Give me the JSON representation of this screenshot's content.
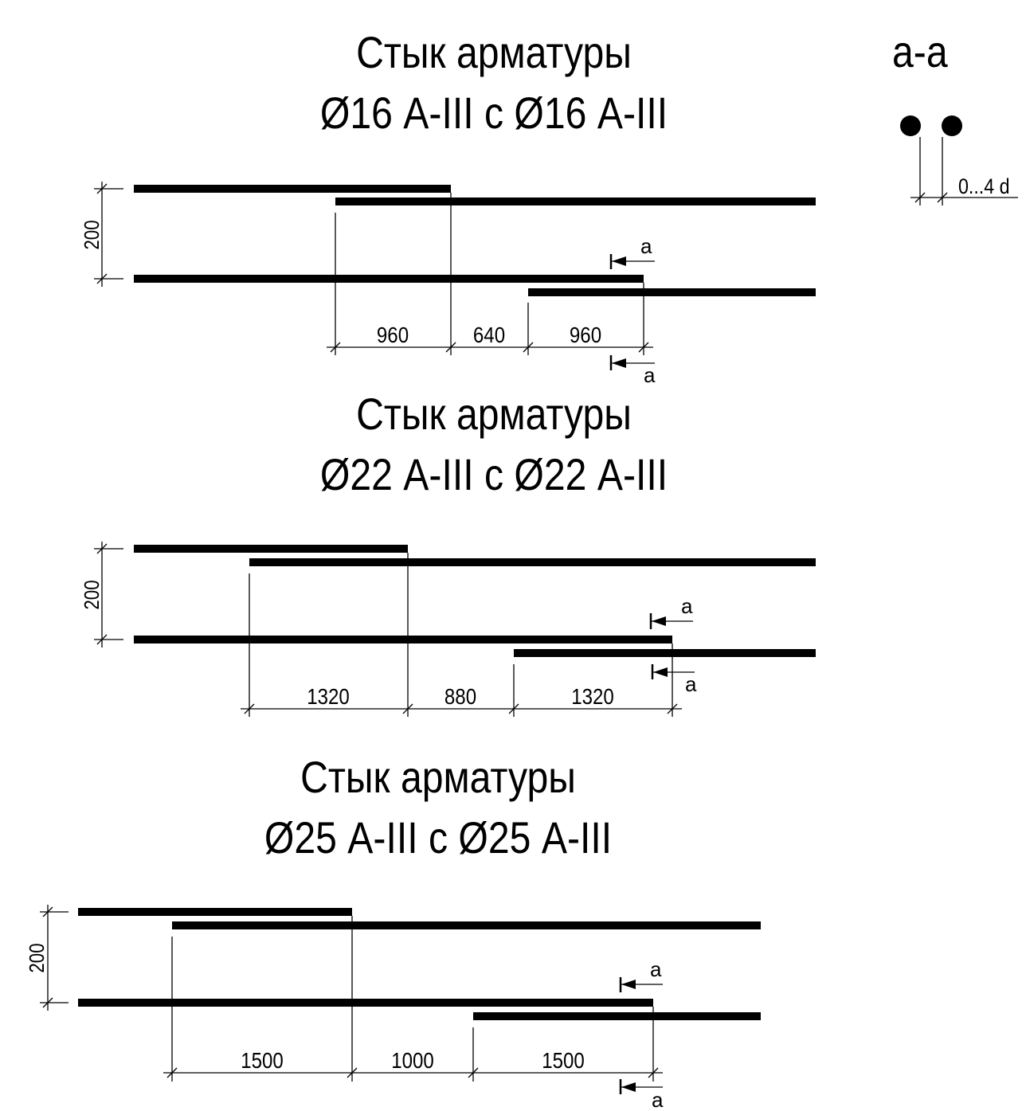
{
  "joints": [
    {
      "title_line1": "Стык арматуры",
      "title_line2": "Ø16 А-III с Ø16 А-III",
      "spacing": "200",
      "lap_left": "960",
      "gap": "640",
      "lap_right": "960"
    },
    {
      "title_line1": "Стык арматуры",
      "title_line2": "Ø22 А-III с Ø22 А-III",
      "spacing": "200",
      "lap_left": "1320",
      "gap": "880",
      "lap_right": "1320"
    },
    {
      "title_line1": "Стык арматуры",
      "title_line2": "Ø25 А-III с Ø25 А-III",
      "spacing": "200",
      "lap_left": "1500",
      "gap": "1000",
      "lap_right": "1500"
    }
  ],
  "section": {
    "title": "а-а",
    "dimension": "0...4 d",
    "marker": "а"
  }
}
